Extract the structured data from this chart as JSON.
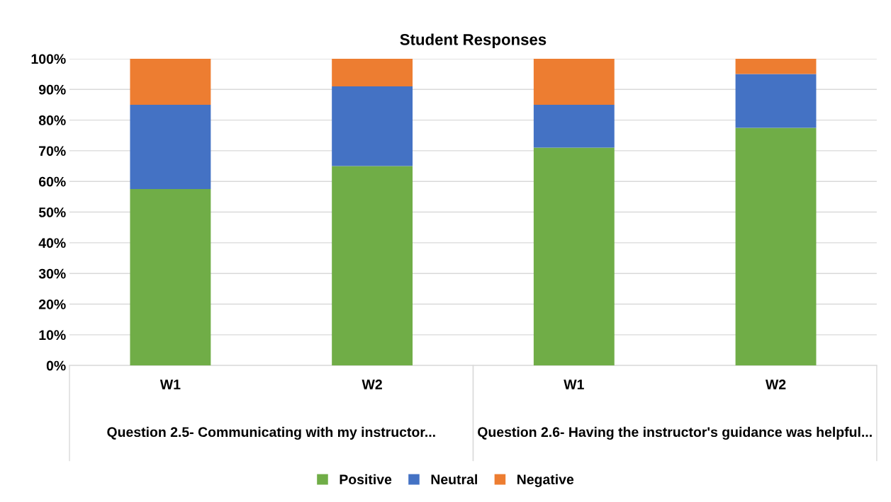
{
  "chart_data": {
    "type": "bar",
    "title": "Student Responses",
    "stacked": true,
    "categories": [
      "W1",
      "W2",
      "W1",
      "W2"
    ],
    "series": [
      {
        "name": "Positive",
        "color": "#70ad47",
        "values": [
          57.5,
          65,
          71,
          77.5
        ]
      },
      {
        "name": "Neutral",
        "color": "#4472c4",
        "values": [
          27.5,
          26,
          14,
          17.5
        ]
      },
      {
        "name": "Negative",
        "color": "#ed7d31",
        "values": [
          15,
          9,
          15,
          5
        ]
      }
    ],
    "annotations": [
      "Question 2.5- Communicating with my instructor...",
      "Question 2.6- Having the instructor's guidance was helpful..."
    ],
    "ylim": [
      0,
      100
    ],
    "yticks": [
      {
        "value": 0,
        "label": "0%"
      },
      {
        "value": 10,
        "label": "10%"
      },
      {
        "value": 20,
        "label": "20%"
      },
      {
        "value": 30,
        "label": "30%"
      },
      {
        "value": 40,
        "label": "40%"
      },
      {
        "value": 50,
        "label": "50%"
      },
      {
        "value": 60,
        "label": "60%"
      },
      {
        "value": 70,
        "label": "70%"
      },
      {
        "value": 80,
        "label": "80%"
      },
      {
        "value": 90,
        "label": "90%"
      },
      {
        "value": 100,
        "label": "100%"
      }
    ],
    "grid": "y",
    "legend": "bottom"
  }
}
